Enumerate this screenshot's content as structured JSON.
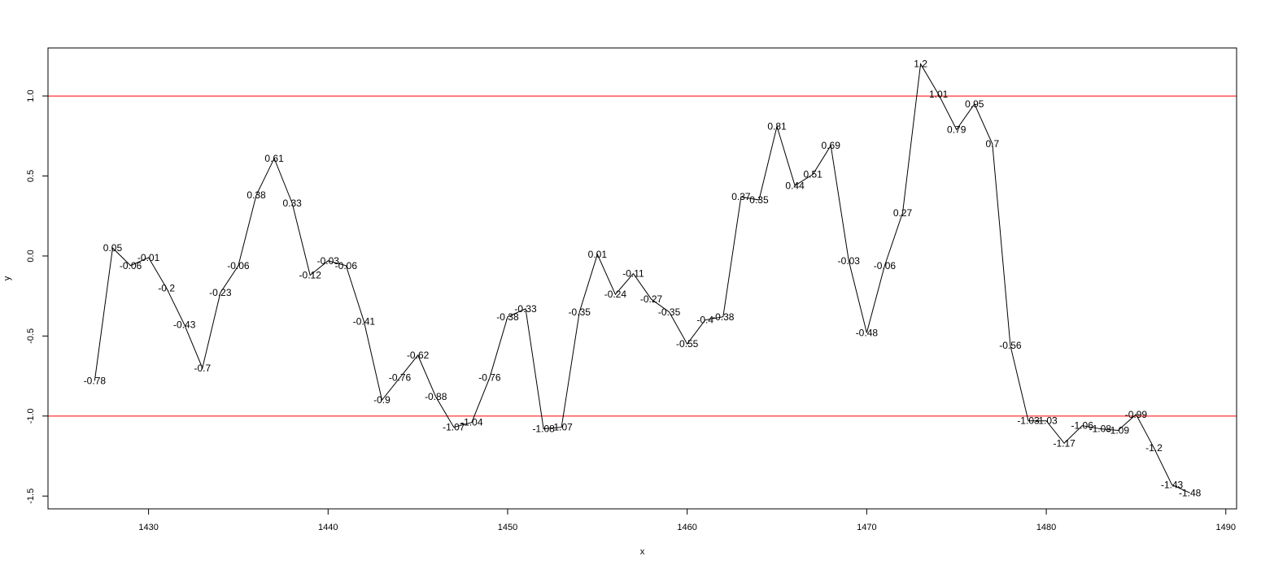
{
  "chart_data": {
    "type": "line",
    "title": "",
    "xlabel": "x",
    "ylabel": "y",
    "xlim": [
      1424.4,
      1490.6
    ],
    "ylim": [
      -1.58,
      1.3
    ],
    "x_ticks": [
      1430,
      1440,
      1450,
      1460,
      1470,
      1480,
      1490
    ],
    "x_tick_labels": [
      "1430",
      "1440",
      "1450",
      "1460",
      "1470",
      "1480",
      "1490"
    ],
    "y_ticks": [
      -1.5,
      -1.0,
      -0.5,
      0.0,
      0.5,
      1.0
    ],
    "y_tick_labels": [
      "-1.5",
      "-1.0",
      "-0.5",
      "0.0",
      "0.5",
      "1.0"
    ],
    "grid": false,
    "line_color": "#000000",
    "reference_lines": [
      {
        "y": 1.0,
        "color": "#ff0000"
      },
      {
        "y": -1.0,
        "color": "#ff0000"
      }
    ],
    "series": [
      {
        "x": [
          1427,
          1428,
          1429,
          1430,
          1431,
          1432,
          1433,
          1434,
          1435,
          1436,
          1437,
          1438,
          1439,
          1440,
          1441,
          1442,
          1443,
          1444,
          1445,
          1446,
          1447,
          1448,
          1449,
          1450,
          1451,
          1452,
          1453,
          1454,
          1455,
          1456,
          1457,
          1458,
          1459,
          1460,
          1461,
          1462,
          1463,
          1464,
          1465,
          1466,
          1467,
          1468,
          1469,
          1470,
          1471,
          1472,
          1473,
          1474,
          1475,
          1476,
          1477,
          1478,
          1479,
          1480,
          1481,
          1482,
          1483,
          1484,
          1485,
          1486,
          1487,
          1488
        ],
        "y": [
          -0.78,
          0.05,
          -0.06,
          -0.01,
          -0.2,
          -0.43,
          -0.7,
          -0.23,
          -0.06,
          0.38,
          0.61,
          0.33,
          -0.12,
          -0.03,
          -0.06,
          -0.41,
          -0.9,
          -0.76,
          -0.62,
          -0.88,
          -1.07,
          -1.04,
          -0.76,
          -0.38,
          -0.33,
          -1.08,
          -1.07,
          -0.35,
          0.01,
          -0.24,
          -0.11,
          -0.27,
          -0.35,
          -0.55,
          -0.4,
          -0.38,
          0.37,
          0.35,
          0.81,
          0.44,
          0.51,
          0.69,
          -0.03,
          -0.48,
          -0.06,
          0.27,
          1.2,
          1.01,
          0.79,
          0.95,
          0.7,
          -0.56,
          -1.03,
          -1.03,
          -1.17,
          -1.06,
          -1.08,
          -1.09,
          -0.99,
          -1.2,
          -1.43,
          -1.48
        ],
        "labels": [
          "-0.78",
          "0.05",
          "-0.06",
          "-0.01",
          "-0.2",
          "-0.43",
          "-0.7",
          "-0.23",
          "-0.06",
          "0.38",
          "0.61",
          "0.33",
          "-0.12",
          "-0.03",
          "-0.06",
          "-0.41",
          "-0.9",
          "-0.76",
          "-0.62",
          "-0.88",
          "-1.07",
          "-1.04",
          "-0.76",
          "-0.38",
          "-0.33",
          "-1.08",
          "-1.07",
          "-0.35",
          "0.01",
          "-0.24",
          "-0.11",
          "-0.27",
          "-0.35",
          "-0.55",
          "-0.4",
          "-0.38",
          "0.37",
          "0.35",
          "0.81",
          "0.44",
          "0.51",
          "0.69",
          "-0.03",
          "-0.48",
          "-0.06",
          "0.27",
          "1.2",
          "1.01",
          "0.79",
          "0.95",
          "0.7",
          "-0.56",
          "-1.03",
          "-1.03",
          "-1.17",
          "-1.06",
          "-1.08",
          "-1.09",
          "-0.99",
          "-1.2",
          "-1.43",
          "-1.48"
        ]
      }
    ]
  }
}
